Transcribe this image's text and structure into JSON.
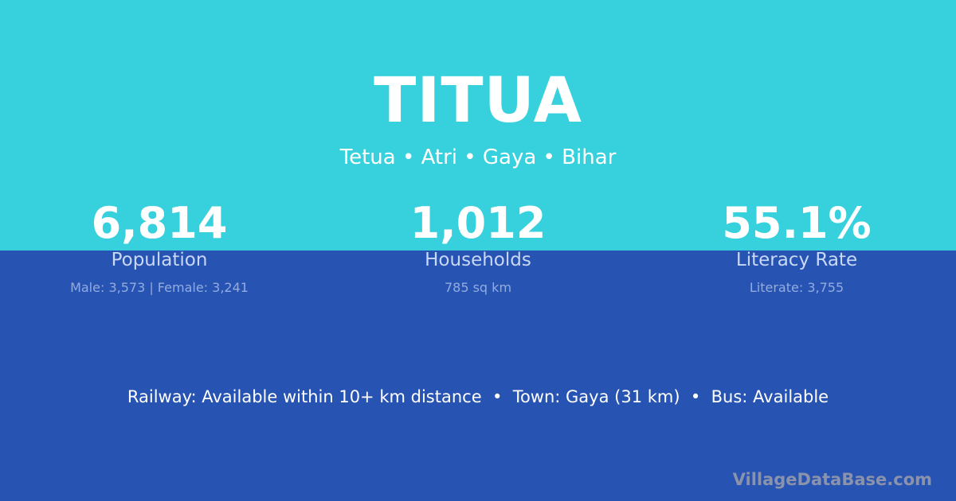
{
  "title": "TITUA",
  "subtitle": "Tetua • Atri • Gaya • Bihar",
  "stats": [
    {
      "value": "6,814",
      "label": "Population",
      "detail": "Male: 3,573 | Female: 3,241"
    },
    {
      "value": "1,012",
      "label": "Households",
      "detail": "785 sq km"
    },
    {
      "value": "55.1%",
      "label": "Literacy Rate",
      "detail": "Literate: 3,755"
    }
  ],
  "info": "Railway: Available within 10+ km distance  •  Town: Gaya (31 km)  •  Bus: Available",
  "watermark": "VillageDataBase.com",
  "colors": {
    "top": "#37d1dd",
    "bottom": "#2753b3"
  }
}
